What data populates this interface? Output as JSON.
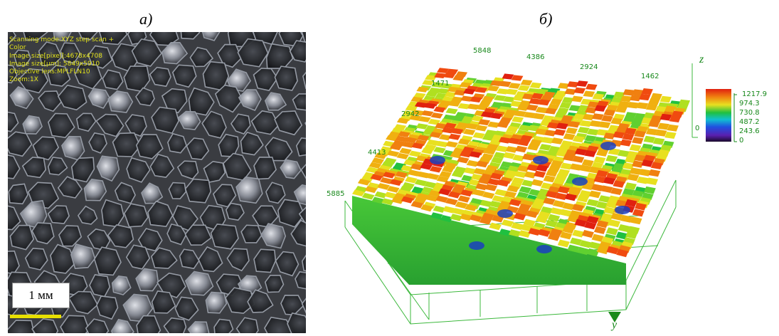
{
  "captions": {
    "a": "а)",
    "b": "б)"
  },
  "micrograph": {
    "metadata_lines": [
      "Scanning mode:XYZ step scan +",
      "Color",
      "Image size[pixel]:4678x4708",
      "Image size[μm]: 5849x5910",
      "Objective lens:MPLFLN10",
      "Zoom:1X"
    ],
    "scale_bar_label": "1 мм",
    "scale_bar_color": "#e8e000"
  },
  "surface_plot": {
    "x_ticks": [
      "5848",
      "4386",
      "2924",
      "1462"
    ],
    "y_ticks": [
      "1471",
      "2942",
      "4413",
      "5885"
    ],
    "z_axis_label": "z",
    "y_axis_label": "y",
    "z_base_label": "0",
    "colorbar_values": [
      "1217.9",
      "974.3",
      "730.8",
      "487.2",
      "243.6",
      "0"
    ],
    "label_color": "#17881a"
  }
}
